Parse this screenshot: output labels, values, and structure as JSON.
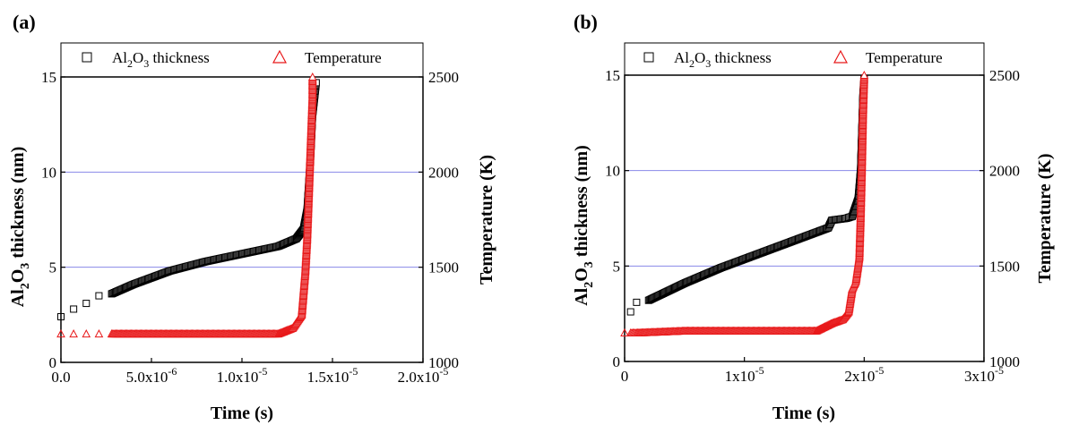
{
  "colors": {
    "thickness": "#000000",
    "temperature": "#e8191a",
    "gridline": "#8a8ae8",
    "axis": "#000000"
  },
  "chart_data": [
    {
      "type": "scatter",
      "panel_label": "(a)",
      "xlabel": "Time (s)",
      "ylabel_prefix": "Al",
      "ylabel_sub1": "2",
      "ylabel_mid": "O",
      "ylabel_sub2": "3",
      "ylabel_suffix": " thickness (nm)",
      "y2label": "Temperature (K)",
      "xlim": [
        0,
        2e-05
      ],
      "ylim": [
        0,
        15
      ],
      "y2lim": [
        1000,
        2500
      ],
      "x_ticks": [
        {
          "value": 0,
          "label": "0.0",
          "exp": ""
        },
        {
          "value": 5e-06,
          "label": "5.0x10",
          "exp": "-6"
        },
        {
          "value": 1e-05,
          "label": "1.0x10",
          "exp": "-5"
        },
        {
          "value": 1.5e-05,
          "label": "1.5x10",
          "exp": "-5"
        },
        {
          "value": 2e-05,
          "label": "2.0x10",
          "exp": "-5"
        }
      ],
      "y_ticks": [
        "0",
        "5",
        "10",
        "15"
      ],
      "y2_ticks": [
        "1000",
        "1500",
        "2000",
        "2500"
      ],
      "grid_y": [
        5,
        10
      ],
      "legend": {
        "position": "top",
        "thickness_prefix": "Al",
        "thickness_sub1": "2",
        "thickness_mid": "O",
        "thickness_sub2": "3",
        "thickness_suffix": " thickness",
        "temperature": "Temperature"
      },
      "series": [
        {
          "name": "Al2O3 thickness",
          "axis": "left",
          "marker": "square",
          "dense_from": 2.8e-06,
          "points": [
            [
              0,
              2.4
            ],
            [
              7e-07,
              2.8
            ],
            [
              1.4e-06,
              3.1
            ],
            [
              2.1e-06,
              3.5
            ],
            [
              2.8e-06,
              3.6
            ],
            [
              4e-06,
              4.1
            ],
            [
              6e-06,
              4.8
            ],
            [
              8e-06,
              5.3
            ],
            [
              1e-05,
              5.7
            ],
            [
              1.2e-05,
              6.1
            ],
            [
              1.3e-05,
              6.5
            ],
            [
              1.34e-05,
              7.0
            ],
            [
              1.36e-05,
              8.0
            ],
            [
              1.37e-05,
              9.5
            ],
            [
              1.38e-05,
              11.0
            ],
            [
              1.39e-05,
              13.0
            ],
            [
              1.41e-05,
              14.7
            ]
          ]
        },
        {
          "name": "Temperature",
          "axis": "right",
          "marker": "triangle",
          "dense_from": 2.8e-06,
          "points": [
            [
              0,
              1150
            ],
            [
              7e-07,
              1150
            ],
            [
              1.4e-06,
              1150
            ],
            [
              2.1e-06,
              1150
            ],
            [
              2.8e-06,
              1150
            ],
            [
              6e-06,
              1150
            ],
            [
              1e-05,
              1150
            ],
            [
              1.2e-05,
              1150
            ],
            [
              1.28e-05,
              1180
            ],
            [
              1.33e-05,
              1250
            ],
            [
              1.35e-05,
              1480
            ],
            [
              1.36e-05,
              1650
            ],
            [
              1.37e-05,
              1900
            ],
            [
              1.38e-05,
              2150
            ],
            [
              1.39e-05,
              2400
            ],
            [
              1.39e-05,
              2500
            ]
          ]
        }
      ]
    },
    {
      "type": "scatter",
      "panel_label": "(b)",
      "xlabel": "Time (s)",
      "ylabel_prefix": "Al",
      "ylabel_sub1": "2",
      "ylabel_mid": "O",
      "ylabel_sub2": "3",
      "ylabel_suffix": " thickness (nm)",
      "y2label": "Temperature (K)",
      "xlim": [
        0,
        3e-05
      ],
      "ylim": [
        0,
        15
      ],
      "y2lim": [
        1000,
        2500
      ],
      "x_ticks": [
        {
          "value": 0,
          "label": "0",
          "exp": ""
        },
        {
          "value": 1e-05,
          "label": "1x10",
          "exp": "-5"
        },
        {
          "value": 2e-05,
          "label": "2x10",
          "exp": "-5"
        },
        {
          "value": 3e-05,
          "label": "3x10",
          "exp": "-5"
        }
      ],
      "y_ticks": [
        "0",
        "5",
        "10",
        "15"
      ],
      "y2_ticks": [
        "1000",
        "1500",
        "2000",
        "2500"
      ],
      "grid_y": [
        5,
        10
      ],
      "legend": {
        "position": "top",
        "thickness_prefix": "Al",
        "thickness_sub1": "2",
        "thickness_mid": "O",
        "thickness_sub2": "3",
        "thickness_suffix": " thickness",
        "temperature": "Temperature"
      },
      "series": [
        {
          "name": "Al2O3 thickness",
          "axis": "left",
          "marker": "square",
          "dense_from": 2e-06,
          "points": [
            [
              5e-07,
              2.6
            ],
            [
              1e-06,
              3.1
            ],
            [
              2e-06,
              3.2
            ],
            [
              5e-06,
              4.1
            ],
            [
              8e-06,
              4.9
            ],
            [
              1.1e-05,
              5.6
            ],
            [
              1.4e-05,
              6.3
            ],
            [
              1.7e-05,
              7.0
            ],
            [
              1.73e-05,
              7.4
            ],
            [
              1.85e-05,
              7.5
            ],
            [
              1.9e-05,
              7.6
            ],
            [
              1.95e-05,
              8.5
            ],
            [
              1.97e-05,
              10.0
            ],
            [
              1.98e-05,
              12.0
            ],
            [
              1.99e-05,
              14.0
            ],
            [
              2e-05,
              14.8
            ]
          ]
        },
        {
          "name": "Temperature",
          "axis": "right",
          "marker": "triangle",
          "dense_from": 5e-07,
          "points": [
            [
              0,
              1150
            ],
            [
              5e-07,
              1150
            ],
            [
              1e-06,
              1150
            ],
            [
              5e-06,
              1160
            ],
            [
              1e-05,
              1160
            ],
            [
              1.6e-05,
              1160
            ],
            [
              1.73e-05,
              1200
            ],
            [
              1.82e-05,
              1220
            ],
            [
              1.87e-05,
              1260
            ],
            [
              1.9e-05,
              1380
            ],
            [
              1.93e-05,
              1420
            ],
            [
              1.96e-05,
              1550
            ],
            [
              1.97e-05,
              1750
            ],
            [
              1.98e-05,
              2000
            ],
            [
              1.99e-05,
              2300
            ],
            [
              2e-05,
              2500
            ]
          ]
        }
      ]
    }
  ]
}
